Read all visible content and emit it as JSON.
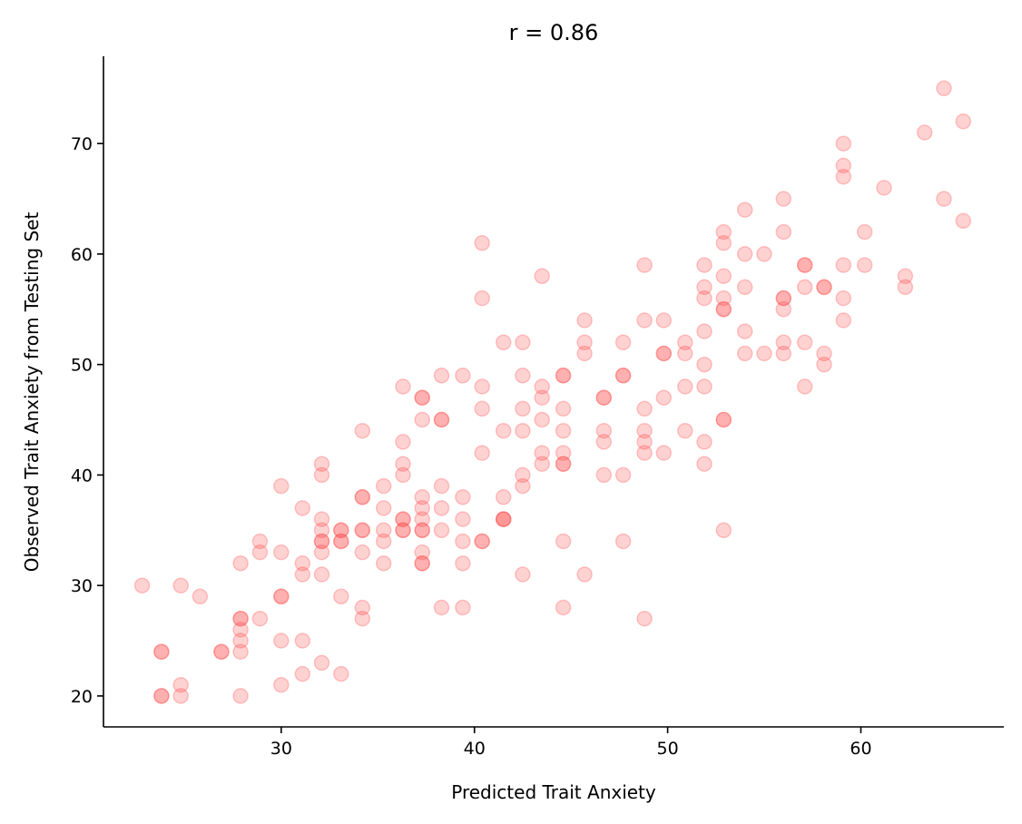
{
  "chart_data": {
    "type": "scatter",
    "title": "r = 0.86",
    "xlabel": "Predicted Trait Anxiety",
    "ylabel": "Observed Trait Anxiety from Testing Set",
    "xlim": [
      20.8,
      67.4
    ],
    "ylim": [
      17.2,
      77.9
    ],
    "xticks": [
      30,
      40,
      50,
      60
    ],
    "yticks": [
      20,
      30,
      40,
      50,
      60,
      70
    ],
    "xtick_labels": [
      "30",
      "40",
      "50",
      "60"
    ],
    "ytick_labels": [
      "20",
      "30",
      "40",
      "50",
      "60",
      "70"
    ],
    "grid": false,
    "marker_color": "#ff4d4d",
    "marker_alpha": 0.25,
    "series": [
      {
        "points": [
          [
            22.8,
            30
          ],
          [
            23.8,
            24
          ],
          [
            23.8,
            24
          ],
          [
            23.8,
            20
          ],
          [
            23.8,
            20
          ],
          [
            24.8,
            30
          ],
          [
            24.8,
            21
          ],
          [
            24.8,
            20
          ],
          [
            25.8,
            29
          ],
          [
            26.9,
            24
          ],
          [
            26.9,
            24
          ],
          [
            27.9,
            27
          ],
          [
            27.9,
            27
          ],
          [
            27.9,
            26
          ],
          [
            27.9,
            25
          ],
          [
            27.9,
            24
          ],
          [
            27.9,
            32
          ],
          [
            27.9,
            20
          ],
          [
            28.9,
            34
          ],
          [
            28.9,
            33
          ],
          [
            28.9,
            27
          ],
          [
            30.0,
            39
          ],
          [
            30.0,
            33
          ],
          [
            30.0,
            29
          ],
          [
            30.0,
            29
          ],
          [
            30.0,
            25
          ],
          [
            30.0,
            21
          ],
          [
            31.1,
            37
          ],
          [
            31.1,
            32
          ],
          [
            31.1,
            31
          ],
          [
            31.1,
            25
          ],
          [
            31.1,
            22
          ],
          [
            32.1,
            41
          ],
          [
            32.1,
            40
          ],
          [
            32.1,
            36
          ],
          [
            32.1,
            35
          ],
          [
            32.1,
            34
          ],
          [
            32.1,
            34
          ],
          [
            32.1,
            33
          ],
          [
            32.1,
            31
          ],
          [
            32.1,
            23
          ],
          [
            33.1,
            35
          ],
          [
            33.1,
            35
          ],
          [
            33.1,
            34
          ],
          [
            33.1,
            34
          ],
          [
            33.1,
            29
          ],
          [
            33.1,
            22
          ],
          [
            34.2,
            44
          ],
          [
            34.2,
            38
          ],
          [
            34.2,
            38
          ],
          [
            34.2,
            35
          ],
          [
            34.2,
            35
          ],
          [
            34.2,
            33
          ],
          [
            34.2,
            28
          ],
          [
            34.2,
            27
          ],
          [
            35.3,
            39
          ],
          [
            35.3,
            37
          ],
          [
            35.3,
            35
          ],
          [
            35.3,
            34
          ],
          [
            35.3,
            32
          ],
          [
            36.3,
            48
          ],
          [
            36.3,
            43
          ],
          [
            36.3,
            41
          ],
          [
            36.3,
            40
          ],
          [
            36.3,
            36
          ],
          [
            36.3,
            36
          ],
          [
            36.3,
            35
          ],
          [
            36.3,
            35
          ],
          [
            37.3,
            47
          ],
          [
            37.3,
            47
          ],
          [
            37.3,
            45
          ],
          [
            37.3,
            38
          ],
          [
            37.3,
            37
          ],
          [
            37.3,
            36
          ],
          [
            37.3,
            35
          ],
          [
            37.3,
            35
          ],
          [
            37.3,
            33
          ],
          [
            37.3,
            32
          ],
          [
            37.3,
            32
          ],
          [
            38.3,
            49
          ],
          [
            38.3,
            45
          ],
          [
            38.3,
            45
          ],
          [
            38.3,
            39
          ],
          [
            38.3,
            37
          ],
          [
            38.3,
            35
          ],
          [
            38.3,
            28
          ],
          [
            39.4,
            49
          ],
          [
            39.4,
            38
          ],
          [
            39.4,
            36
          ],
          [
            39.4,
            34
          ],
          [
            39.4,
            32
          ],
          [
            39.4,
            28
          ],
          [
            40.4,
            61
          ],
          [
            40.4,
            56
          ],
          [
            40.4,
            48
          ],
          [
            40.4,
            46
          ],
          [
            40.4,
            42
          ],
          [
            40.4,
            34
          ],
          [
            40.4,
            34
          ],
          [
            41.5,
            52
          ],
          [
            41.5,
            44
          ],
          [
            41.5,
            38
          ],
          [
            41.5,
            36
          ],
          [
            41.5,
            36
          ],
          [
            41.5,
            36
          ],
          [
            42.5,
            52
          ],
          [
            42.5,
            49
          ],
          [
            42.5,
            46
          ],
          [
            42.5,
            44
          ],
          [
            42.5,
            40
          ],
          [
            42.5,
            39
          ],
          [
            42.5,
            31
          ],
          [
            43.5,
            58
          ],
          [
            43.5,
            48
          ],
          [
            43.5,
            47
          ],
          [
            43.5,
            45
          ],
          [
            43.5,
            42
          ],
          [
            43.5,
            41
          ],
          [
            44.6,
            49
          ],
          [
            44.6,
            49
          ],
          [
            44.6,
            46
          ],
          [
            44.6,
            44
          ],
          [
            44.6,
            42
          ],
          [
            44.6,
            41
          ],
          [
            44.6,
            41
          ],
          [
            44.6,
            34
          ],
          [
            44.6,
            28
          ],
          [
            45.7,
            54
          ],
          [
            45.7,
            52
          ],
          [
            45.7,
            51
          ],
          [
            45.7,
            31
          ],
          [
            46.7,
            47
          ],
          [
            46.7,
            47
          ],
          [
            46.7,
            44
          ],
          [
            46.7,
            43
          ],
          [
            46.7,
            40
          ],
          [
            47.7,
            52
          ],
          [
            47.7,
            49
          ],
          [
            47.7,
            49
          ],
          [
            47.7,
            40
          ],
          [
            47.7,
            34
          ],
          [
            48.8,
            59
          ],
          [
            48.8,
            54
          ],
          [
            48.8,
            46
          ],
          [
            48.8,
            44
          ],
          [
            48.8,
            43
          ],
          [
            48.8,
            42
          ],
          [
            48.8,
            27
          ],
          [
            49.8,
            54
          ],
          [
            49.8,
            51
          ],
          [
            49.8,
            51
          ],
          [
            49.8,
            47
          ],
          [
            49.8,
            42
          ],
          [
            50.9,
            52
          ],
          [
            50.9,
            51
          ],
          [
            50.9,
            48
          ],
          [
            50.9,
            44
          ],
          [
            51.9,
            59
          ],
          [
            51.9,
            57
          ],
          [
            51.9,
            56
          ],
          [
            51.9,
            53
          ],
          [
            51.9,
            50
          ],
          [
            51.9,
            48
          ],
          [
            51.9,
            43
          ],
          [
            51.9,
            41
          ],
          [
            52.9,
            62
          ],
          [
            52.9,
            61
          ],
          [
            52.9,
            58
          ],
          [
            52.9,
            56
          ],
          [
            52.9,
            55
          ],
          [
            52.9,
            55
          ],
          [
            52.9,
            45
          ],
          [
            52.9,
            45
          ],
          [
            52.9,
            35
          ],
          [
            54.0,
            64
          ],
          [
            54.0,
            60
          ],
          [
            54.0,
            57
          ],
          [
            54.0,
            53
          ],
          [
            54.0,
            51
          ],
          [
            55.0,
            60
          ],
          [
            55.0,
            51
          ],
          [
            56.0,
            65
          ],
          [
            56.0,
            62
          ],
          [
            56.0,
            56
          ],
          [
            56.0,
            56
          ],
          [
            56.0,
            55
          ],
          [
            56.0,
            52
          ],
          [
            56.0,
            51
          ],
          [
            57.1,
            59
          ],
          [
            57.1,
            59
          ],
          [
            57.1,
            57
          ],
          [
            57.1,
            52
          ],
          [
            57.1,
            48
          ],
          [
            58.1,
            57
          ],
          [
            58.1,
            57
          ],
          [
            58.1,
            51
          ],
          [
            58.1,
            50
          ],
          [
            59.1,
            70
          ],
          [
            59.1,
            68
          ],
          [
            59.1,
            67
          ],
          [
            59.1,
            59
          ],
          [
            59.1,
            56
          ],
          [
            59.1,
            54
          ],
          [
            60.2,
            62
          ],
          [
            60.2,
            59
          ],
          [
            61.2,
            66
          ],
          [
            62.3,
            58
          ],
          [
            62.3,
            57
          ],
          [
            63.3,
            71
          ],
          [
            64.3,
            75
          ],
          [
            64.3,
            65
          ],
          [
            65.3,
            72
          ],
          [
            65.3,
            63
          ]
        ]
      }
    ]
  }
}
